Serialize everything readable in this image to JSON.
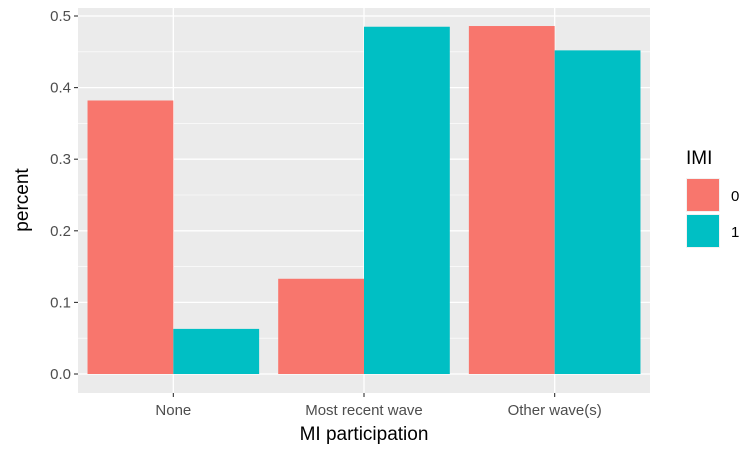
{
  "chart_data": {
    "type": "bar",
    "categories": [
      "None",
      "Most recent wave",
      "Other wave(s)"
    ],
    "series": [
      {
        "name": "0",
        "color": "#F8766D",
        "values": [
          0.382,
          0.133,
          0.486
        ]
      },
      {
        "name": "1",
        "color": "#00BFC4",
        "values": [
          0.063,
          0.485,
          0.452
        ]
      }
    ],
    "xlabel": "MI participation",
    "ylabel": "percent",
    "ylim": [
      0,
      0.5
    ],
    "yticks": [
      0.0,
      0.1,
      0.2,
      0.3,
      0.4,
      0.5
    ],
    "ytick_labels": [
      "0.0",
      "0.1",
      "0.2",
      "0.3",
      "0.4",
      "0.5"
    ],
    "legend": {
      "title": "IMI",
      "placement": "right"
    },
    "grid": true,
    "panel_background": "#EBEBEB",
    "grid_color": "#FFFFFF"
  }
}
